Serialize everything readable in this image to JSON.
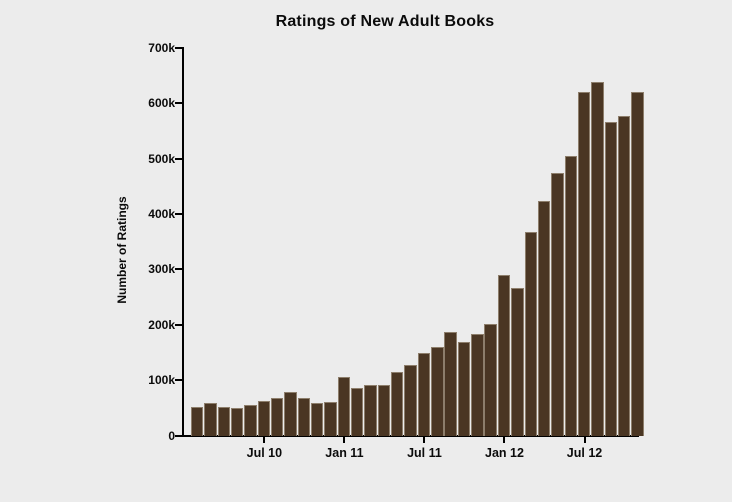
{
  "title": "Ratings of New Adult Books",
  "y_axis": {
    "label": "Number of Ratings",
    "ticks": [
      "0",
      "100k",
      "200k",
      "300k",
      "400k",
      "500k",
      "600k",
      "700k"
    ]
  },
  "x_axis": {
    "ticks": [
      {
        "label": "Jul 10",
        "month_index": 5
      },
      {
        "label": "Jan 11",
        "month_index": 11
      },
      {
        "label": "Jul 11",
        "month_index": 17
      },
      {
        "label": "Jan 12",
        "month_index": 23
      },
      {
        "label": "Jul 12",
        "month_index": 29
      }
    ]
  },
  "colors": {
    "background": "#ECECEC",
    "bar_fill": "#4A3623",
    "bar_border": "#8D7E6B",
    "axis": "#000000",
    "text": "#0B0B0B"
  },
  "chart_data": {
    "type": "bar",
    "title": "Ratings of New Adult Books",
    "xlabel": "",
    "ylabel": "Number of Ratings",
    "ylim": [
      0,
      700000
    ],
    "grid": false,
    "legend": false,
    "x": [
      "Feb 2010",
      "Mar 2010",
      "Apr 2010",
      "May 2010",
      "Jun 2010",
      "Jul 2010",
      "Aug 2010",
      "Sep 2010",
      "Oct 2010",
      "Nov 2010",
      "Dec 2010",
      "Jan 2011",
      "Feb 2011",
      "Mar 2011",
      "Apr 2011",
      "May 2011",
      "Jun 2011",
      "Jul 2011",
      "Aug 2011",
      "Sep 2011",
      "Oct 2011",
      "Nov 2011",
      "Dec 2011",
      "Jan 2012",
      "Feb 2012",
      "Mar 2012",
      "Apr 2012",
      "May 2012",
      "Jun 2012",
      "Jul 2012",
      "Aug 2012",
      "Sep 2012",
      "Oct 2012",
      "Nov 2012"
    ],
    "values": [
      52000,
      60000,
      53000,
      50000,
      56000,
      64000,
      68000,
      79000,
      68000,
      59000,
      61000,
      107000,
      87000,
      93000,
      93000,
      115000,
      128000,
      150000,
      160000,
      187000,
      170000,
      184000,
      202000,
      290000,
      267000,
      369000,
      424000,
      475000,
      506000,
      622000,
      640000,
      567000,
      578000,
      621000
    ]
  }
}
